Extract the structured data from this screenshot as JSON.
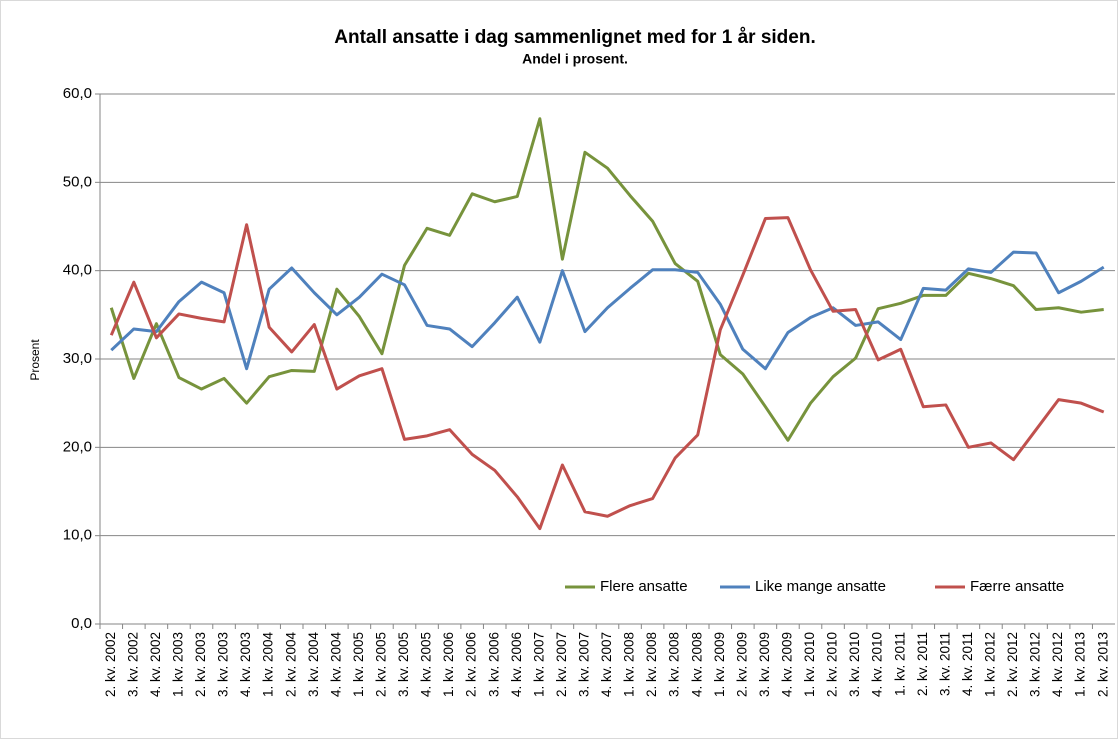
{
  "chart_data": {
    "type": "line",
    "title": "Antall ansatte i dag sammenlignet med for 1 år siden.",
    "subtitle": "Andel i prosent.",
    "ylabel": "Prosent",
    "categories": [
      "2. kv. 2002",
      "3. kv. 2002",
      "4. kv. 2002",
      "1. kv. 2003",
      "2. kv. 2003",
      "3. kv. 2003",
      "4. kv. 2003",
      "1. kv. 2004",
      "2. kv. 2004",
      "3. kv. 2004",
      "4. kv. 2004",
      "1. kv. 2005",
      "2. kv. 2005",
      "3. kv. 2005",
      "4. kv. 2005",
      "1. kv. 2006",
      "2. kv. 2006",
      "3. kv. 2006",
      "4. kv. 2006",
      "1. kv. 2007",
      "2. kv. 2007",
      "3. kv. 2007",
      "4. kv. 2007",
      "1. kv. 2008",
      "2. kv. 2008",
      "3. kv. 2008",
      "4. kv. 2008",
      "1. kv. 2009",
      "2. kv. 2009",
      "3. kv. 2009",
      "4. kv. 2009",
      "1. kv. 2010",
      "2. kv. 2010",
      "3. kv. 2010",
      "4. kv. 2010",
      "1. kv. 2011",
      "2. kv. 2011",
      "3. kv. 2011",
      "4. kv. 2011",
      "1. kv. 2012",
      "2. kv. 2012",
      "3. kv. 2012",
      "4. kv. 2012",
      "1. kv. 2013",
      "2. kv. 2013"
    ],
    "series": [
      {
        "name": "Flere ansatte",
        "color": "#77933c",
        "values": [
          35.8,
          27.8,
          34.0,
          27.9,
          26.6,
          27.8,
          25.0,
          28.0,
          28.7,
          28.6,
          37.9,
          34.8,
          30.6,
          40.6,
          44.8,
          44.0,
          48.7,
          47.8,
          48.4,
          57.2,
          41.3,
          53.4,
          51.6,
          48.5,
          45.6,
          40.8,
          38.8,
          30.5,
          28.3,
          24.6,
          20.8,
          25.0,
          28.0,
          30.1,
          35.7,
          36.3,
          37.2,
          37.2,
          39.7,
          39.1,
          38.3,
          35.6,
          35.8,
          35.3,
          35.6
        ]
      },
      {
        "name": "Like mange ansatte",
        "color": "#4f81bd",
        "values": [
          31.0,
          33.4,
          33.1,
          36.5,
          38.7,
          37.5,
          28.9,
          37.9,
          40.3,
          37.5,
          35.0,
          37.0,
          39.6,
          38.4,
          33.8,
          33.4,
          31.4,
          34.1,
          37.0,
          31.9,
          40.0,
          33.1,
          35.8,
          38.0,
          40.1,
          40.1,
          39.8,
          36.2,
          31.1,
          28.9,
          33.0,
          34.7,
          35.8,
          33.8,
          34.2,
          32.2,
          38.0,
          37.8,
          40.2,
          39.8,
          42.1,
          42.0,
          37.5,
          38.8,
          40.4
        ]
      },
      {
        "name": "Færre ansatte",
        "color": "#c0504d",
        "values": [
          32.7,
          38.7,
          32.4,
          35.1,
          34.6,
          34.2,
          45.2,
          33.6,
          30.8,
          33.9,
          26.6,
          28.1,
          28.9,
          20.9,
          21.3,
          22.0,
          19.2,
          17.4,
          14.4,
          10.8,
          18.0,
          12.7,
          12.2,
          13.4,
          14.2,
          18.8,
          21.4,
          33.3,
          39.5,
          45.9,
          46.0,
          40.1,
          35.4,
          35.6,
          29.9,
          31.1,
          24.6,
          24.8,
          20.0,
          20.5,
          18.6,
          22.0,
          25.4,
          25.0,
          24.0
        ]
      }
    ],
    "ylim": [
      0,
      60
    ],
    "yticks": [
      {
        "value": 0,
        "label": "0,0"
      },
      {
        "value": 10,
        "label": "10,0"
      },
      {
        "value": 20,
        "label": "20,0"
      },
      {
        "value": 30,
        "label": "30,0"
      },
      {
        "value": 40,
        "label": "40,0"
      },
      {
        "value": 50,
        "label": "50,0"
      },
      {
        "value": 60,
        "label": "60,0"
      }
    ],
    "grid": true,
    "legend": "lower right"
  }
}
